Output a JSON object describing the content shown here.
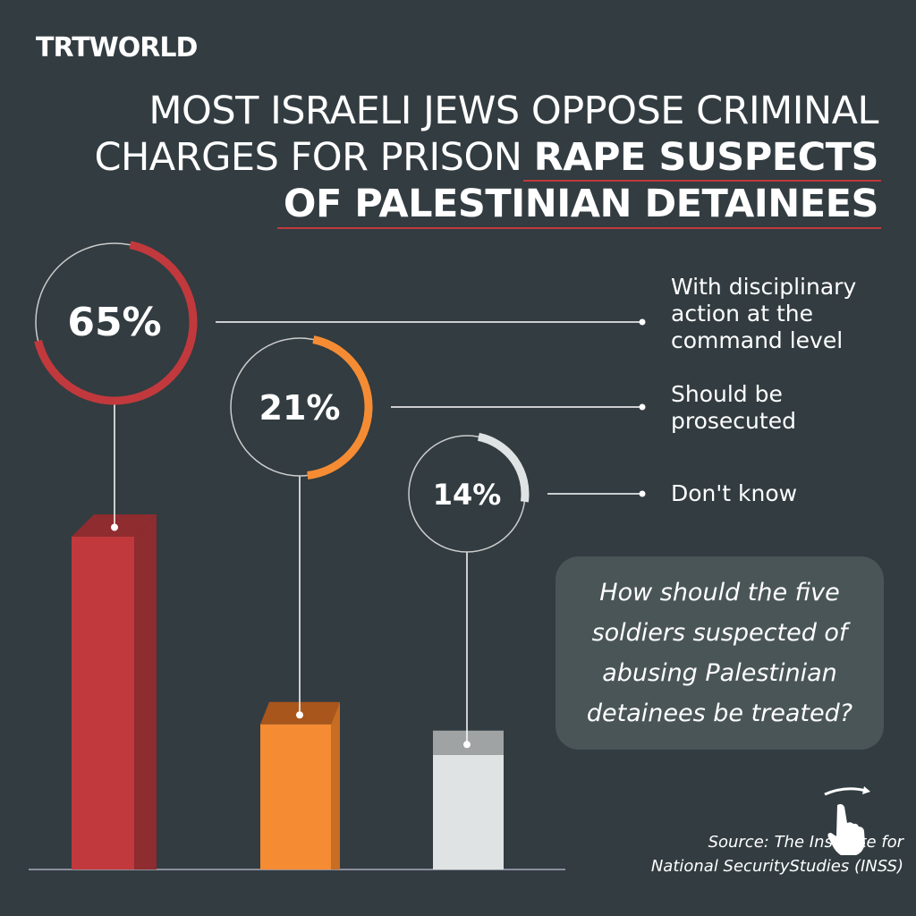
{
  "brand": "TRTWORLD",
  "title": {
    "line1": "MOST ISRAELI JEWS OPPOSE CRIMINAL",
    "line2_regular": "CHARGES FOR PRISON ",
    "line2_bold": "RAPE SUSPECTS",
    "line3_bold": "OF PALESTINIAN DETAINEES"
  },
  "question": "How should the five soldiers suspected of abusing Palestinian detainees be treated?",
  "source": {
    "line1": "Source: The Institute for",
    "line2": "National SecurityStudies (INSS)"
  },
  "icons": {
    "swipe": "swipe-hand-icon"
  },
  "chart_data": {
    "type": "bar",
    "categories": [
      "With disciplinary action at the command level",
      "Should be prosecuted",
      "Don't know"
    ],
    "values": [
      65,
      21,
      14
    ],
    "labels": [
      "65%",
      "21%",
      "14%"
    ],
    "colors": [
      "#c1393c",
      "#f58c33",
      "#dfe3e3"
    ],
    "unit": "%"
  }
}
